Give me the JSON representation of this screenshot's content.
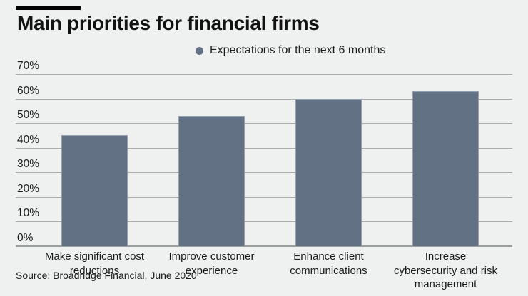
{
  "meta": {
    "background_color": "#eff1f0",
    "accent_flag_color": "#000000"
  },
  "header": {
    "title": "Main priorities for financial firms"
  },
  "legend": {
    "label": "Expectations for the next 6 months",
    "marker_color": "#627183"
  },
  "source": {
    "text": "Source: Broadridge Financial, June 2020"
  },
  "chart_data": {
    "type": "bar",
    "title": "Main priorities for financial firms",
    "legend_entries": [
      "Expectations for the next 6 months"
    ],
    "legend_position": "top",
    "categories": [
      "Make significant cost reductions",
      "Improve customer experience",
      "Enhance client communications",
      "Increase cybersecurity and risk management"
    ],
    "category_label_lines": [
      [
        "Make significant cost",
        "reductions"
      ],
      [
        "Improve customer",
        "experience"
      ],
      [
        "Enhance client",
        "communications"
      ],
      [
        "Increase",
        "cybersecurity and risk",
        "management"
      ]
    ],
    "values": [
      45,
      53,
      60,
      63
    ],
    "unit": "%",
    "xlabel": "",
    "ylabel": "",
    "ylim": [
      0,
      70
    ],
    "ytick_values": [
      0,
      10,
      20,
      30,
      40,
      50,
      60,
      70
    ],
    "ytick_labels": [
      "0%",
      "10%",
      "20%",
      "30%",
      "40%",
      "50%",
      "60%",
      "70%"
    ],
    "grid": true,
    "bar_color": "#627183",
    "gridline_color": "#a9aeac",
    "source": "Source: Broadridge Financial, June 2020"
  }
}
